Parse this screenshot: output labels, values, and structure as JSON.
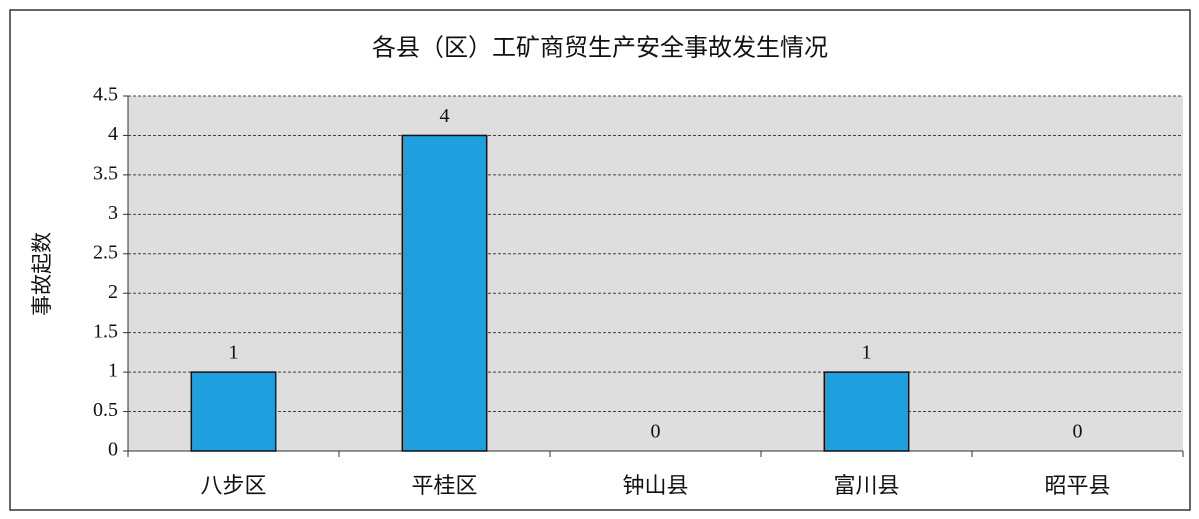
{
  "chart_data": {
    "type": "bar",
    "title": "各县（区）工矿商贸生产安全事故发生情况",
    "y_label": "事故起数",
    "categories": [
      "八步区",
      "平桂区",
      "钟山县",
      "富川县",
      "昭平县"
    ],
    "values": [
      1,
      4,
      0,
      1,
      0
    ],
    "color": "#1e9fe0",
    "ylim": [
      0,
      4.5
    ],
    "yticks": [
      0,
      0.5,
      1,
      1.5,
      2,
      2.5,
      3,
      3.5,
      4,
      4.5
    ],
    "grid": true
  }
}
